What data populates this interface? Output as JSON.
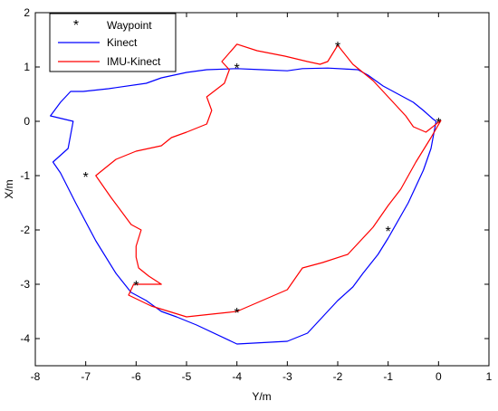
{
  "chart_data": {
    "type": "line",
    "title": "",
    "xlabel": "Y/m",
    "ylabel": "X/m",
    "xlim": [
      -8,
      1
    ],
    "ylim": [
      -4.5,
      2
    ],
    "xticks": [
      "-8",
      "-7",
      "-6",
      "-5",
      "-4",
      "-3",
      "-2",
      "-1",
      "0",
      "1"
    ],
    "yticks": [
      "-4",
      "-3",
      "-2",
      "-1",
      "0",
      "1",
      "2"
    ],
    "grid": false,
    "legend_position": "top-left",
    "series": [
      {
        "name": "Waypoint",
        "kind": "marker",
        "marker": "*",
        "color": "#000000",
        "points": [
          [
            0,
            0
          ],
          [
            -1,
            -2
          ],
          [
            -4,
            -3.5
          ],
          [
            -6,
            -3
          ],
          [
            -7,
            -1
          ],
          [
            -4,
            1
          ],
          [
            -2,
            1.4
          ]
        ]
      },
      {
        "name": "Kinect",
        "kind": "line",
        "color": "#0000ff",
        "points": [
          [
            -0.05,
            0
          ],
          [
            -0.15,
            -0.5
          ],
          [
            -0.3,
            -0.9
          ],
          [
            -0.6,
            -1.5
          ],
          [
            -1.0,
            -2.15
          ],
          [
            -1.2,
            -2.45
          ],
          [
            -1.5,
            -2.8
          ],
          [
            -1.7,
            -3.05
          ],
          [
            -2.0,
            -3.3
          ],
          [
            -2.3,
            -3.6
          ],
          [
            -2.6,
            -3.9
          ],
          [
            -3.0,
            -4.05
          ],
          [
            -4.0,
            -4.1
          ],
          [
            -4.8,
            -3.75
          ],
          [
            -5.2,
            -3.6
          ],
          [
            -5.5,
            -3.5
          ],
          [
            -5.8,
            -3.3
          ],
          [
            -6.1,
            -3.15
          ],
          [
            -6.4,
            -2.8
          ],
          [
            -6.8,
            -2.2
          ],
          [
            -7.2,
            -1.5
          ],
          [
            -7.5,
            -0.95
          ],
          [
            -7.65,
            -0.75
          ],
          [
            -7.35,
            -0.5
          ],
          [
            -7.25,
            0
          ],
          [
            -7.7,
            0.1
          ],
          [
            -7.5,
            0.35
          ],
          [
            -7.3,
            0.55
          ],
          [
            -7.05,
            0.55
          ],
          [
            -6.55,
            0.6
          ],
          [
            -5.8,
            0.7
          ],
          [
            -5.5,
            0.8
          ],
          [
            -5.0,
            0.9
          ],
          [
            -4.6,
            0.95
          ],
          [
            -4.0,
            0.97
          ],
          [
            -3.5,
            0.95
          ],
          [
            -3.0,
            0.93
          ],
          [
            -2.7,
            0.97
          ],
          [
            -2.2,
            0.98
          ],
          [
            -1.8,
            0.96
          ],
          [
            -1.6,
            0.95
          ],
          [
            -1.4,
            0.85
          ],
          [
            -1.1,
            0.65
          ],
          [
            -0.8,
            0.5
          ],
          [
            -0.5,
            0.35
          ],
          [
            -0.3,
            0.2
          ],
          [
            -0.12,
            0.05
          ],
          [
            -0.05,
            0
          ]
        ]
      },
      {
        "name": "IMU-Kinect",
        "kind": "line",
        "color": "#ff0000",
        "points": [
          [
            0.05,
            0.02
          ],
          [
            -0.25,
            -0.2
          ],
          [
            -0.5,
            -0.1
          ],
          [
            -0.65,
            0.1
          ],
          [
            -0.85,
            0.3
          ],
          [
            -1.3,
            0.75
          ],
          [
            -1.7,
            1.05
          ],
          [
            -2.0,
            1.4
          ],
          [
            -2.2,
            1.1
          ],
          [
            -2.35,
            1.05
          ],
          [
            -2.6,
            1.1
          ],
          [
            -3.05,
            1.2
          ],
          [
            -3.6,
            1.3
          ],
          [
            -4.0,
            1.42
          ],
          [
            -4.3,
            1.1
          ],
          [
            -4.15,
            0.95
          ],
          [
            -4.25,
            0.7
          ],
          [
            -4.6,
            0.45
          ],
          [
            -4.5,
            0.2
          ],
          [
            -4.6,
            -0.05
          ],
          [
            -5.0,
            -0.2
          ],
          [
            -5.3,
            -0.3
          ],
          [
            -5.5,
            -0.45
          ],
          [
            -6.0,
            -0.55
          ],
          [
            -6.4,
            -0.7
          ],
          [
            -6.6,
            -0.85
          ],
          [
            -6.8,
            -1.0
          ],
          [
            -6.5,
            -1.4
          ],
          [
            -6.1,
            -1.9
          ],
          [
            -5.9,
            -2.0
          ],
          [
            -6.0,
            -2.3
          ],
          [
            -6.0,
            -2.5
          ],
          [
            -5.95,
            -2.7
          ],
          [
            -5.75,
            -2.85
          ],
          [
            -5.5,
            -3.0
          ],
          [
            -6.05,
            -3.0
          ],
          [
            -6.15,
            -3.2
          ],
          [
            -5.7,
            -3.4
          ],
          [
            -5.0,
            -3.6
          ],
          [
            -4.5,
            -3.55
          ],
          [
            -4.0,
            -3.5
          ],
          [
            -3.5,
            -3.3
          ],
          [
            -3.0,
            -3.1
          ],
          [
            -2.7,
            -2.7
          ],
          [
            -2.3,
            -2.6
          ],
          [
            -1.8,
            -2.45
          ],
          [
            -1.3,
            -1.95
          ],
          [
            -1.0,
            -1.55
          ],
          [
            -0.75,
            -1.25
          ],
          [
            -0.45,
            -0.75
          ],
          [
            -0.15,
            -0.3
          ],
          [
            0.05,
            0.02
          ]
        ]
      }
    ]
  }
}
